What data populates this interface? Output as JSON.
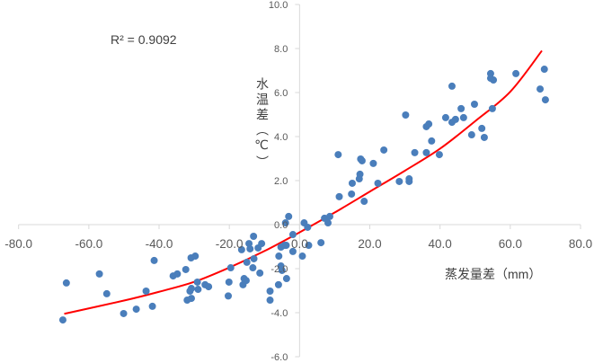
{
  "chart_data": {
    "type": "scatter",
    "title": "",
    "xlabel": "蒸发量差（mm）",
    "ylabel": "水温差（℃）",
    "xlim": [
      -80,
      80
    ],
    "ylim": [
      -6,
      10
    ],
    "x_ticks": [
      "-80.0",
      "-60.0",
      "-40.0",
      "-20.0",
      "0.0",
      "20.0",
      "40.0",
      "60.0",
      "80.0"
    ],
    "x_tick_values": [
      -80,
      -60,
      -40,
      -20,
      0,
      20,
      40,
      60,
      80
    ],
    "y_ticks": [
      "10.0",
      "8.0",
      "6.0",
      "4.0",
      "2.0",
      "0.0",
      "-2.0",
      "-4.0",
      "-6.0"
    ],
    "y_tick_values": [
      10,
      8,
      6,
      4,
      2,
      0,
      -2,
      -4,
      -6
    ],
    "grid": false,
    "annotation": "R² = 0.9092",
    "colors": {
      "points": "#4a7ebb",
      "trendline": "#ff0000",
      "axis": "#d9d9d9"
    },
    "points": [
      [
        -67.4,
        -4.33
      ],
      [
        -66.4,
        -2.65
      ],
      [
        -57.0,
        -2.24
      ],
      [
        -54.9,
        -3.14
      ],
      [
        -50.1,
        -4.04
      ],
      [
        -46.5,
        -3.84
      ],
      [
        -43.7,
        -3.02
      ],
      [
        -41.9,
        -3.71
      ],
      [
        -41.4,
        -1.63
      ],
      [
        -36.0,
        -2.33
      ],
      [
        -34.8,
        -2.24
      ],
      [
        -32.4,
        -2.04
      ],
      [
        -32.0,
        -3.43
      ],
      [
        -30.8,
        -3.35
      ],
      [
        -31.2,
        -3.02
      ],
      [
        -30.8,
        -2.9
      ],
      [
        -30.9,
        -1.51
      ],
      [
        -29.7,
        -1.43
      ],
      [
        -29.1,
        -2.61
      ],
      [
        -28.9,
        -2.94
      ],
      [
        -26.9,
        -2.73
      ],
      [
        -25.9,
        -2.82
      ],
      [
        -20.1,
        -2.61
      ],
      [
        -20.3,
        -3.24
      ],
      [
        -19.6,
        -1.96
      ],
      [
        -16.5,
        -1.14
      ],
      [
        -16.1,
        -2.73
      ],
      [
        -15.8,
        -2.45
      ],
      [
        -15.2,
        -2.54
      ],
      [
        -15.0,
        -1.71
      ],
      [
        -14.4,
        -0.86
      ],
      [
        -14.1,
        -1.1
      ],
      [
        -13.1,
        -0.53
      ],
      [
        -13.3,
        -1.96
      ],
      [
        -13.0,
        -1.55
      ],
      [
        -11.8,
        -1.06
      ],
      [
        -11.3,
        -2.2
      ],
      [
        -10.8,
        -0.86
      ],
      [
        -8.4,
        -3.02
      ],
      [
        -8.4,
        -3.43
      ],
      [
        -6.0,
        -2.73
      ],
      [
        -5.9,
        -1.43
      ],
      [
        -5.3,
        -1.02
      ],
      [
        -5.3,
        -1.88
      ],
      [
        -5.0,
        -2.08
      ],
      [
        -3.7,
        -2.45
      ],
      [
        -4.3,
        -0.94
      ],
      [
        -3.8,
        -0.94
      ],
      [
        -3.1,
        0.37
      ],
      [
        -4.0,
        0.08
      ],
      [
        -1.9,
        -0.45
      ],
      [
        -1.9,
        -1.22
      ],
      [
        1.3,
        0.08
      ],
      [
        2.3,
        -0.12
      ],
      [
        2.6,
        -0.94
      ],
      [
        0.8,
        -1.43
      ],
      [
        6.1,
        -0.82
      ],
      [
        7.1,
        0.29
      ],
      [
        8.1,
        0.08
      ],
      [
        8.6,
        0.37
      ],
      [
        11.0,
        3.18
      ],
      [
        11.3,
        1.27
      ],
      [
        14.8,
        1.39
      ],
      [
        15.0,
        1.88
      ],
      [
        17.0,
        2.08
      ],
      [
        17.2,
        2.29
      ],
      [
        17.4,
        2.98
      ],
      [
        17.8,
        2.9
      ],
      [
        18.4,
        1.06
      ],
      [
        21.0,
        2.78
      ],
      [
        22.3,
        1.88
      ],
      [
        24.0,
        3.39
      ],
      [
        28.4,
        1.96
      ],
      [
        30.2,
        4.98
      ],
      [
        31.2,
        2.08
      ],
      [
        31.2,
        1.96
      ],
      [
        32.8,
        3.27
      ],
      [
        36.1,
        3.27
      ],
      [
        36.1,
        4.45
      ],
      [
        36.8,
        4.57
      ],
      [
        37.6,
        3.8
      ],
      [
        39.8,
        3.18
      ],
      [
        41.6,
        4.86
      ],
      [
        43.4,
        6.29
      ],
      [
        43.4,
        4.65
      ],
      [
        44.4,
        4.78
      ],
      [
        46.0,
        5.27
      ],
      [
        46.7,
        4.86
      ],
      [
        49.0,
        4.08
      ],
      [
        49.8,
        5.47
      ],
      [
        51.9,
        4.37
      ],
      [
        52.6,
        3.96
      ],
      [
        54.4,
        6.86
      ],
      [
        54.4,
        6.65
      ],
      [
        55.2,
        6.57
      ],
      [
        54.9,
        5.27
      ],
      [
        61.6,
        6.86
      ],
      [
        68.5,
        6.16
      ],
      [
        69.7,
        7.06
      ],
      [
        70.0,
        5.67
      ]
    ],
    "trendline": {
      "type": "polynomial",
      "x": [
        -67,
        -50,
        -40,
        -30,
        -20,
        -10,
        0,
        10,
        20,
        30,
        40,
        50,
        60,
        69
      ],
      "y": [
        -4.05,
        -3.45,
        -3.05,
        -2.6,
        -1.95,
        -1.2,
        -0.35,
        0.55,
        1.5,
        2.45,
        3.45,
        4.7,
        6.04,
        7.9
      ]
    }
  }
}
